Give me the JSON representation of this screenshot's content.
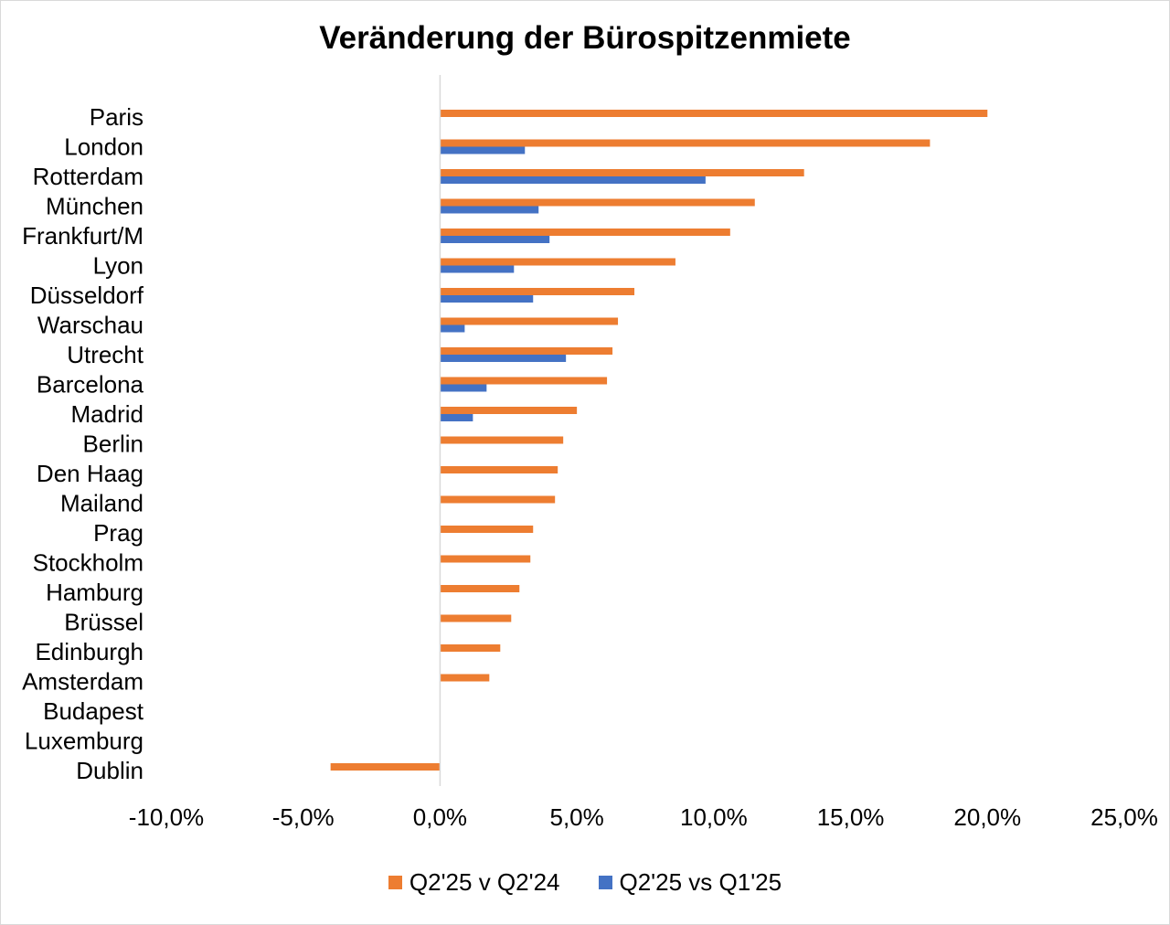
{
  "chart_data": {
    "type": "bar",
    "orientation": "horizontal",
    "title": "Veränderung der Bürospitzenmiete",
    "xlabel": "",
    "ylabel": "",
    "xlim": [
      -0.1,
      0.25
    ],
    "x_ticks": [
      -0.1,
      -0.05,
      0.0,
      0.05,
      0.1,
      0.15,
      0.2,
      0.25
    ],
    "x_tick_labels": [
      "-10,0%",
      "-5,0%",
      "0,0%",
      "5,0%",
      "10,0%",
      "15,0%",
      "20,0%",
      "25,0%"
    ],
    "grid": false,
    "legend_position": "bottom",
    "categories": [
      "Paris",
      "London",
      "Rotterdam",
      "München",
      "Frankfurt/M",
      "Lyon",
      "Düsseldorf",
      "Warschau",
      "Utrecht",
      "Barcelona",
      "Madrid",
      "Berlin",
      "Den Haag",
      "Mailand",
      "Prag",
      "Stockholm",
      "Hamburg",
      "Brüssel",
      "Edinburgh",
      "Amsterdam",
      "Budapest",
      "Luxemburg",
      "Dublin"
    ],
    "series": [
      {
        "name": "Q2'25 v Q2'24",
        "color": "#ED7D31",
        "values": [
          0.2,
          0.179,
          0.133,
          0.115,
          0.106,
          0.086,
          0.071,
          0.065,
          0.063,
          0.061,
          0.05,
          0.045,
          0.043,
          0.042,
          0.034,
          0.033,
          0.029,
          0.026,
          0.022,
          0.018,
          0.0,
          0.0,
          -0.04
        ]
      },
      {
        "name": "Q2'25 vs Q1'25",
        "color": "#4472C4",
        "values": [
          0.0,
          0.031,
          0.097,
          0.036,
          0.04,
          0.027,
          0.034,
          0.009,
          0.046,
          0.017,
          0.012,
          0.0,
          0.0,
          0.0,
          0.0,
          0.0,
          0.0,
          0.0,
          0.0,
          0.0,
          0.0,
          0.0,
          0.0
        ]
      }
    ]
  },
  "colors": {
    "axis_line": "#d9d9d9",
    "frame_border": "#d9d9d9"
  }
}
